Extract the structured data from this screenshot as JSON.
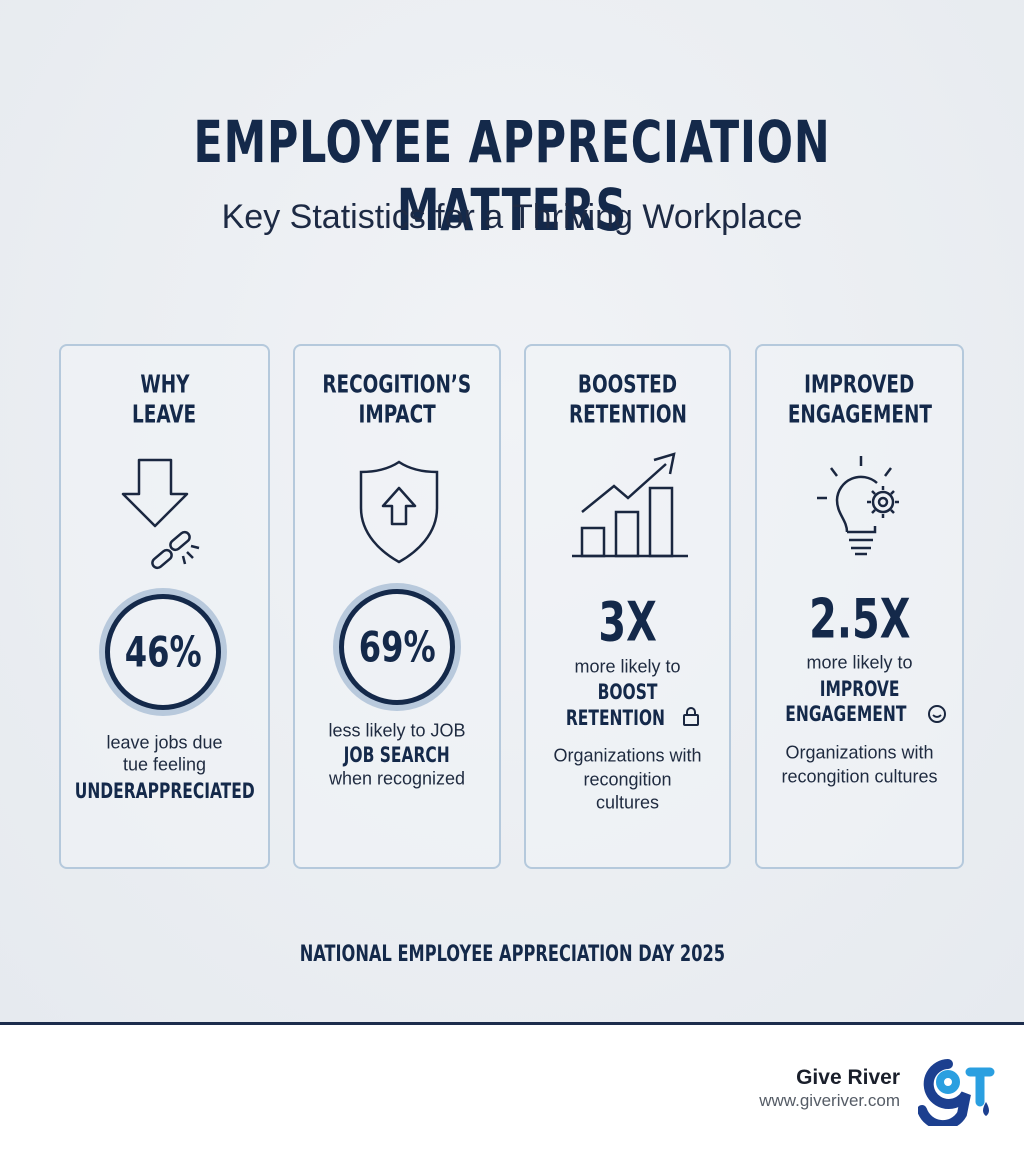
{
  "header": {
    "title": "EMPLOYEE APPRECIATION MATTERS",
    "subtitle": "Key Statistics for a Thriving Workplace"
  },
  "cards": [
    {
      "heading": [
        "WHY",
        "LEAVE"
      ],
      "stat": "46%",
      "lines": [
        "leave jobs due",
        "tue feeling",
        "UNDERAPPRECIATED"
      ]
    },
    {
      "heading": [
        "RECOGITION’S",
        "IMPACT"
      ],
      "stat": "69%",
      "lines": [
        "less likely to JOB",
        "JOB SEARCH",
        "when recognized"
      ]
    },
    {
      "heading": [
        "BOOSTED",
        "RETENTION"
      ],
      "stat": "3X",
      "lines": [
        "more likely to",
        "BOOST",
        "RETENTION",
        "Organizations with",
        "recongition",
        "cultures"
      ]
    },
    {
      "heading": [
        "IMPROVED",
        "ENGAGEMENT"
      ],
      "stat": "2.5X",
      "lines": [
        "more likely to",
        "IMPROVE",
        "ENGAGEMENT",
        "Organizations with",
        "recongition cultures"
      ]
    }
  ],
  "footer_note": "NATIONAL EMPLOYEE APPRECIATION DAY 2025",
  "brand": {
    "name": "Give River",
    "url": "www.giveriver.com"
  }
}
